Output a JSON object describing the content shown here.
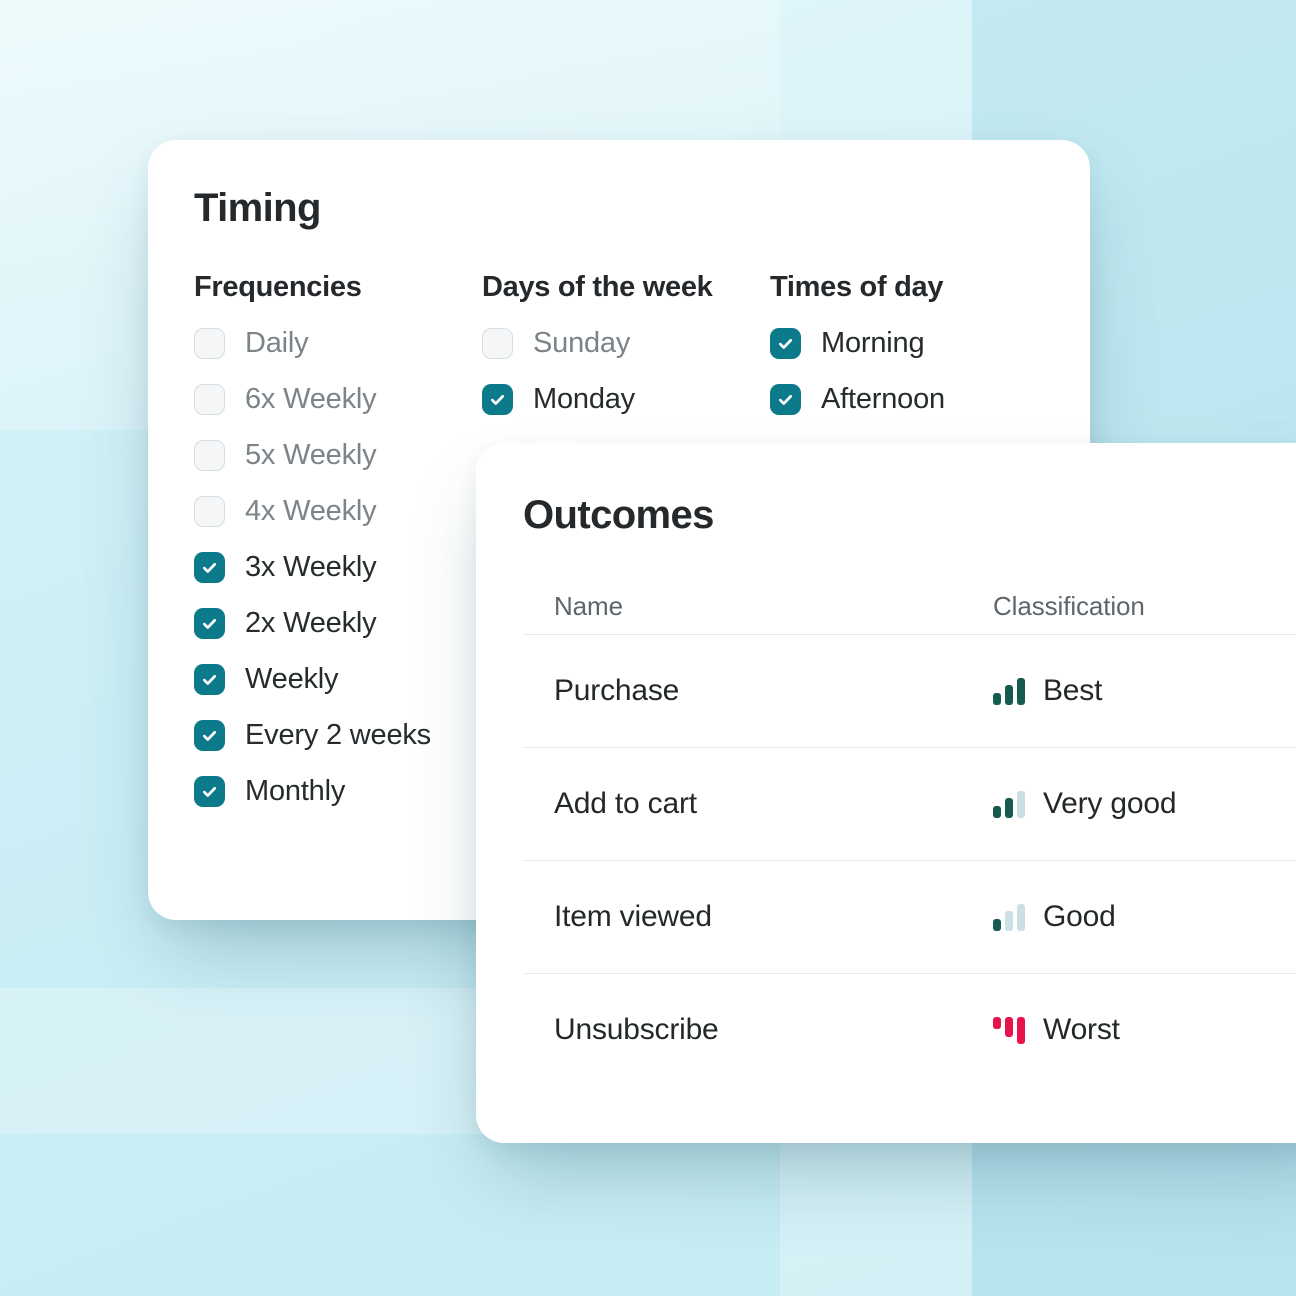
{
  "colors": {
    "accent_teal": "#0c7a8a",
    "bar_green": "#175a52",
    "bar_muted": "#ccdfe3",
    "bar_red": "#e9134b",
    "background_cyan": "#c9edf5",
    "card_background": "#ffffff",
    "text_dark": "#25292c",
    "text_muted": "#7b8488"
  },
  "timing": {
    "title": "Timing",
    "groups": [
      {
        "header": "Frequencies",
        "items": [
          {
            "label": "Daily",
            "checked": false
          },
          {
            "label": "6x Weekly",
            "checked": false
          },
          {
            "label": "5x Weekly",
            "checked": false
          },
          {
            "label": "4x Weekly",
            "checked": false
          },
          {
            "label": "3x Weekly",
            "checked": true
          },
          {
            "label": "2x Weekly",
            "checked": true
          },
          {
            "label": "Weekly",
            "checked": true
          },
          {
            "label": "Every 2 weeks",
            "checked": true
          },
          {
            "label": "Monthly",
            "checked": true
          }
        ]
      },
      {
        "header": "Days of the week",
        "items": [
          {
            "label": "Sunday",
            "checked": false
          },
          {
            "label": "Monday",
            "checked": true
          }
        ]
      },
      {
        "header": "Times of day",
        "items": [
          {
            "label": "Morning",
            "checked": true
          },
          {
            "label": "Afternoon",
            "checked": true
          }
        ]
      }
    ]
  },
  "outcomes": {
    "title": "Outcomes",
    "columns": [
      "Name",
      "Classification"
    ],
    "rows": [
      {
        "name": "Purchase",
        "classification": "Best",
        "icon": {
          "name": "signal-bars-best-icon",
          "direction": "up",
          "bar_colors": [
            "#175a52",
            "#175a52",
            "#175a52"
          ]
        }
      },
      {
        "name": "Add to cart",
        "classification": "Very good",
        "icon": {
          "name": "signal-bars-very-good-icon",
          "direction": "up",
          "bar_colors": [
            "#175a52",
            "#175a52",
            "#ccdfe3"
          ]
        }
      },
      {
        "name": "Item viewed",
        "classification": "Good",
        "icon": {
          "name": "signal-bars-good-icon",
          "direction": "up",
          "bar_colors": [
            "#175a52",
            "#ccdfe3",
            "#ccdfe3"
          ]
        }
      },
      {
        "name": "Unsubscribe",
        "classification": "Worst",
        "icon": {
          "name": "signal-bars-worst-icon",
          "direction": "down",
          "bar_colors": [
            "#e9134b",
            "#e9134b",
            "#e9134b"
          ]
        }
      }
    ]
  }
}
